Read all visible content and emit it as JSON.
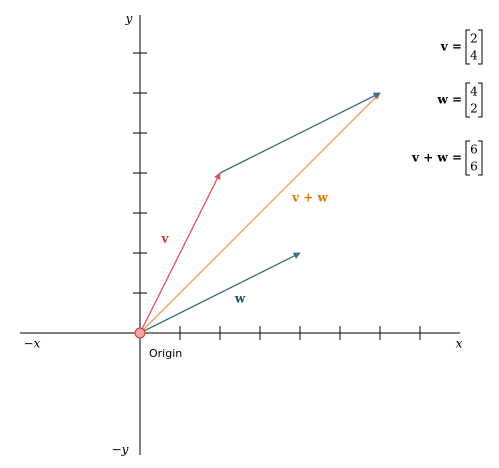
{
  "axes": {
    "x": "x",
    "neg_x": "−x",
    "y": "y",
    "neg_y": "−y",
    "origin": "Origin"
  },
  "vectors": [
    {
      "label": "v",
      "equation": "v =",
      "components": [
        2,
        4
      ],
      "color": "#d9545e"
    },
    {
      "label": "w",
      "equation": "w =",
      "components": [
        4,
        2
      ],
      "color": "#3f6f88"
    },
    {
      "label": "v + w",
      "equation": "v + w =",
      "components": [
        6,
        6
      ],
      "color": "#ee9b55"
    }
  ]
}
